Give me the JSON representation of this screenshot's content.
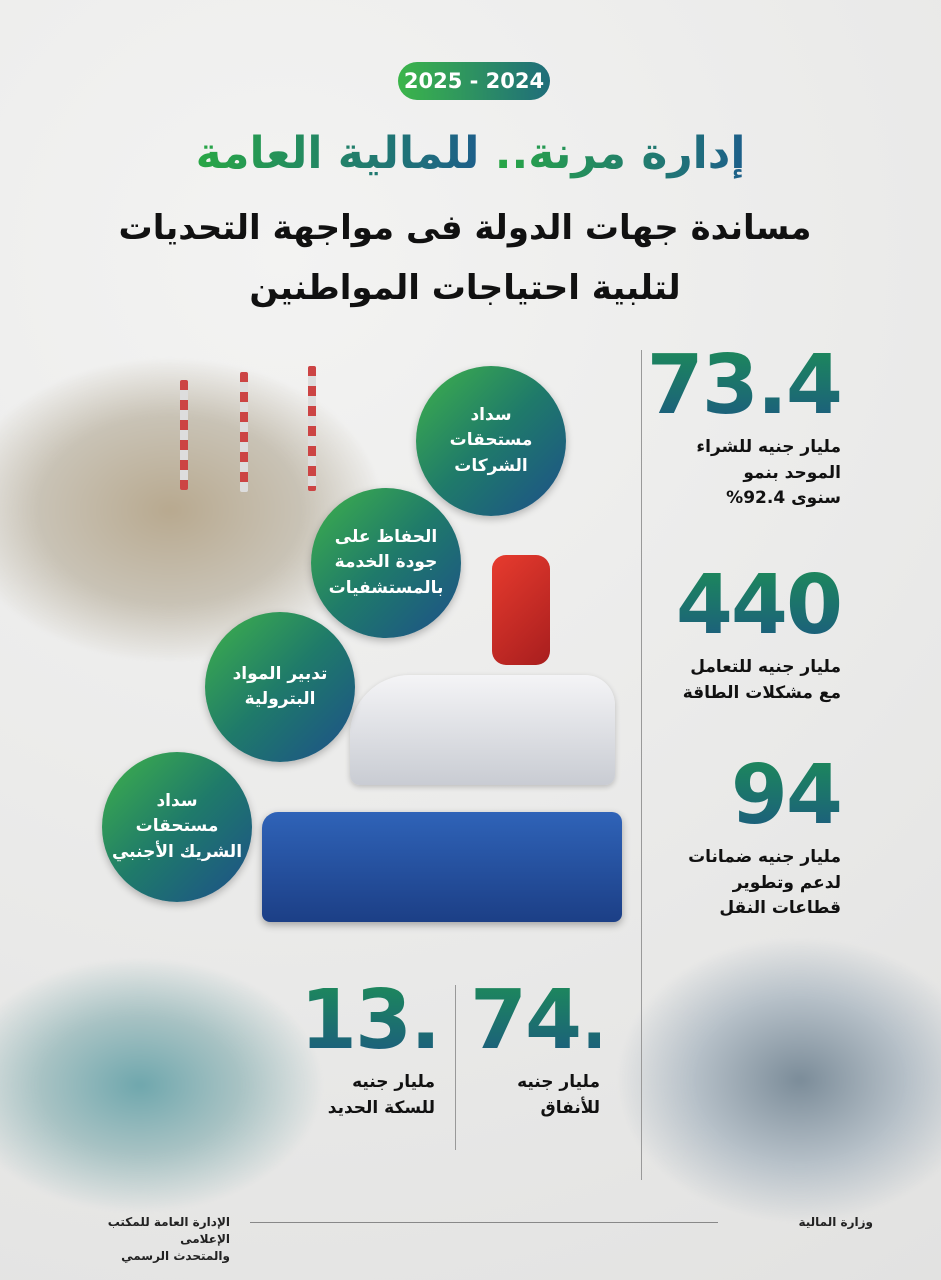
{
  "header": {
    "year_badge": "2025 - 2024",
    "title_part1": "إدارة مرنة..",
    "title_part2": "للمالية العامة",
    "subtitle_line1": "مساندة جهات الدولة فى مواجهة التحديات",
    "subtitle_line2": "لتلبية احتياجات المواطنين"
  },
  "circles": [
    {
      "label": "سداد\nمستحقات\nالشركات"
    },
    {
      "label": "الحفاظ على\nجودة الخدمة\nبالمستشفيات"
    },
    {
      "label": "تدبير المواد\nالبترولية"
    },
    {
      "label": "سداد\nمستحقات\nالشريك الأجنبي"
    }
  ],
  "stats": [
    {
      "value": "73.4",
      "desc": "مليار جنيه للشراء\nالموحد بنمو\nسنوى 92.4%"
    },
    {
      "value": "440",
      "desc": "مليار جنيه للتعامل\nمع مشكلات الطاقة"
    },
    {
      "value": "94",
      "desc": "مليار جنيه ضمانات\nلدعم وتطوير\nقطاعات النقل"
    }
  ],
  "bottom_stats": [
    {
      "value": "74.1",
      "desc": "مليار جنيه\nللأنفاق"
    },
    {
      "value": "13.5",
      "desc": "مليار جنيه\nللسكة الحديد"
    }
  ],
  "footer": {
    "ministry": "وزارة المالية",
    "office": "الإدارة العامة للمكتب الإعلامى\nوالمتحدث الرسمي"
  },
  "colors": {
    "green": "#3bb54a",
    "teal": "#1f7a6a",
    "blue": "#1d4f8a",
    "background": "#ebebea"
  }
}
